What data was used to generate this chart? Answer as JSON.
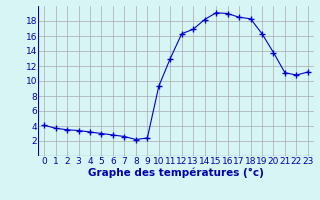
{
  "hours": [
    0,
    1,
    2,
    3,
    4,
    5,
    6,
    7,
    8,
    9,
    10,
    11,
    12,
    13,
    14,
    15,
    16,
    17,
    18,
    19,
    20,
    21,
    22,
    23
  ],
  "temperatures": [
    4.1,
    3.7,
    3.5,
    3.4,
    3.2,
    3.0,
    2.8,
    2.6,
    2.2,
    2.4,
    9.3,
    13.0,
    16.3,
    16.9,
    18.2,
    19.1,
    19.0,
    18.5,
    18.3,
    16.3,
    13.8,
    11.1,
    10.8,
    11.2
  ],
  "line_color": "#0000cc",
  "marker": "+",
  "marker_size": 4,
  "bg_color": "#d8f5f5",
  "grid_color": "#aaaaaa",
  "xlabel": "Graphe des températures (°c)",
  "xlabel_color": "#0000aa",
  "tick_color": "#0000aa",
  "ylim": [
    0,
    20
  ],
  "xlim": [
    -0.5,
    23.5
  ],
  "yticks": [
    2,
    4,
    6,
    8,
    10,
    12,
    14,
    16,
    18
  ],
  "xticks": [
    0,
    1,
    2,
    3,
    4,
    5,
    6,
    7,
    8,
    9,
    10,
    11,
    12,
    13,
    14,
    15,
    16,
    17,
    18,
    19,
    20,
    21,
    22,
    23
  ],
  "tick_font_size": 6.5,
  "label_font_size": 7.5
}
